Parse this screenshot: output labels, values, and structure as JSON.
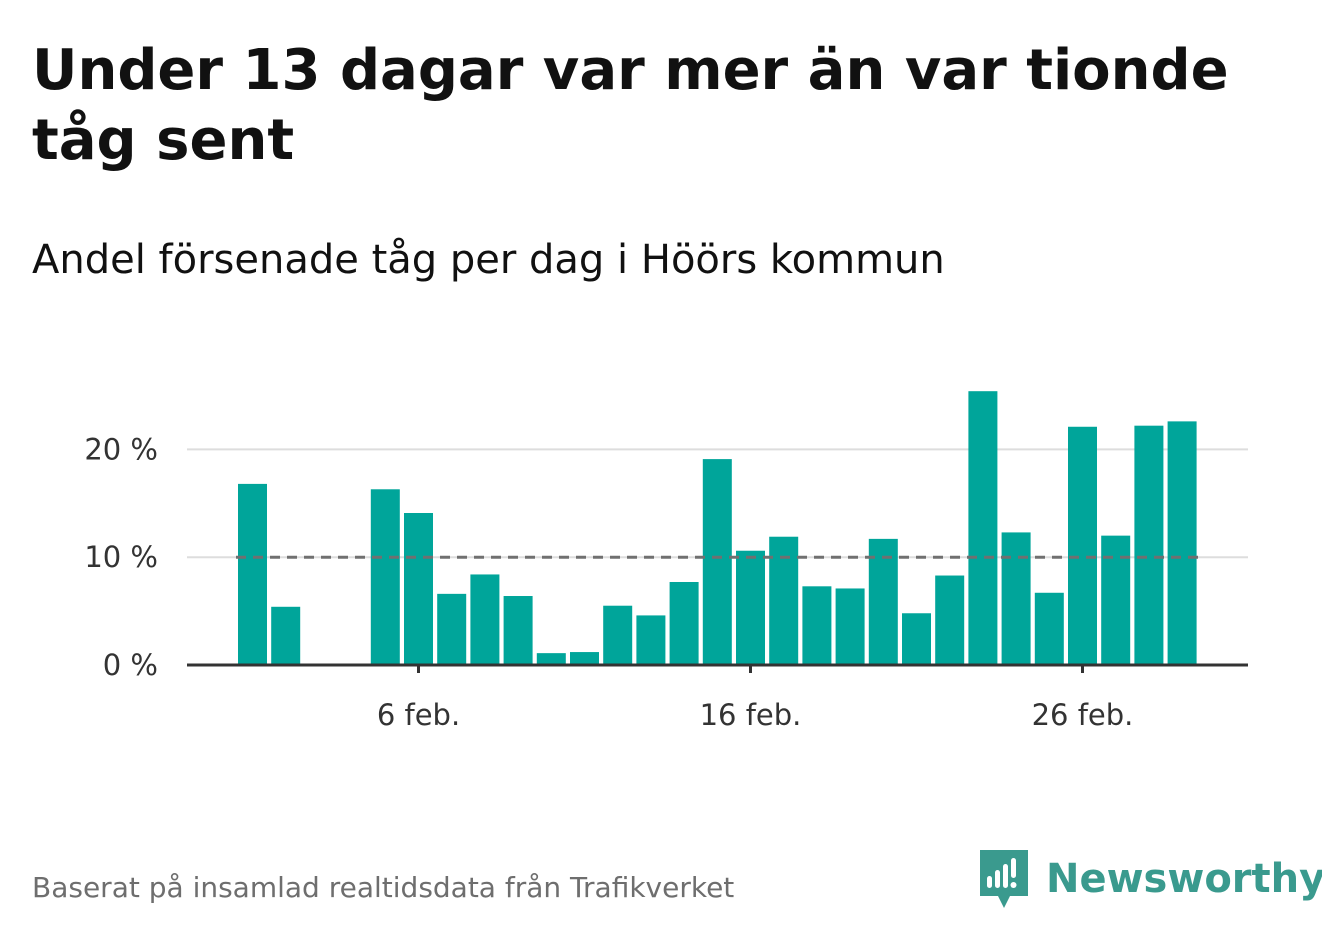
{
  "title": "Under 13 dagar var mer än var tionde tåg sent",
  "subtitle": "Andel försenade tåg per dag i Höörs kommun",
  "footer": "Baserat på insamlad realtidsdata från Trafikverket",
  "brand": {
    "name": "Newsworthy",
    "icon": "newsworthy-logo-icon",
    "color": "#3a9a8e"
  },
  "chart_data": {
    "type": "bar",
    "x": [
      "2023-02-01",
      "2023-02-02",
      "2023-02-03",
      "2023-02-04",
      "2023-02-05",
      "2023-02-06",
      "2023-02-07",
      "2023-02-08",
      "2023-02-09",
      "2023-02-10",
      "2023-02-11",
      "2023-02-12",
      "2023-02-13",
      "2023-02-14",
      "2023-02-15",
      "2023-02-16",
      "2023-02-17",
      "2023-02-18",
      "2023-02-19",
      "2023-02-20",
      "2023-02-21",
      "2023-02-22",
      "2023-02-23",
      "2023-02-24",
      "2023-02-25",
      "2023-02-26",
      "2023-02-27",
      "2023-02-28"
    ],
    "values": [
      16.8,
      5.4,
      null,
      null,
      16.3,
      14.1,
      6.6,
      8.4,
      6.4,
      1.1,
      1.2,
      5.5,
      4.6,
      7.7,
      19.1,
      10.6,
      11.9,
      7.3,
      7.1,
      11.7,
      4.8,
      8.3,
      25.4,
      12.3,
      6.7,
      22.1,
      12.0,
      22.2
    ],
    "extra_bar": 22.6,
    "xticks": [
      {
        "x": "2023-02-06",
        "label": "6 feb."
      },
      {
        "x": "2023-02-16",
        "label": "16 feb."
      },
      {
        "x": "2023-02-26",
        "label": "26 feb."
      }
    ],
    "yticks": [
      {
        "value": 0,
        "label": "0 %"
      },
      {
        "value": 10,
        "label": "10 %"
      },
      {
        "value": 20,
        "label": "20 %"
      }
    ],
    "ylim": [
      0,
      25.4
    ],
    "reference_line": 10,
    "bar_color": "#00a59a",
    "grid": true,
    "xlabel": "",
    "ylabel": ""
  }
}
